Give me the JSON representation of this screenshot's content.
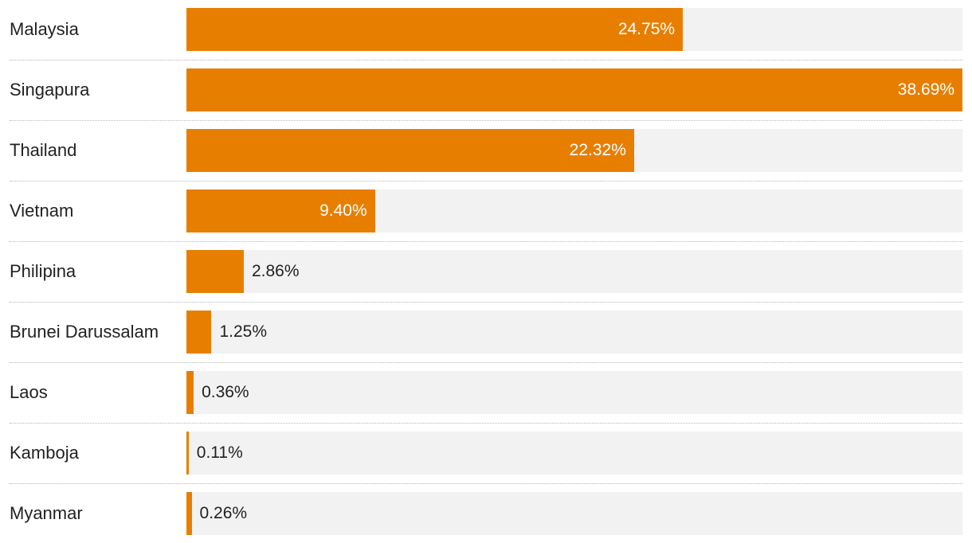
{
  "colors": {
    "bar": "#e87e00",
    "track": "#f2f2f2",
    "label_text": "#222222",
    "inside_text": "#ffffff"
  },
  "chart_data": {
    "type": "bar",
    "orientation": "horizontal",
    "title": "",
    "xlabel": "",
    "ylabel": "",
    "xlim": [
      0,
      38.69
    ],
    "grid": false,
    "legend": "none",
    "categories": [
      "Malaysia",
      "Singapura",
      "Thailand",
      "Vietnam",
      "Philipina",
      "Brunei Darussalam",
      "Laos",
      "Kamboja",
      "Myanmar"
    ],
    "values": [
      24.75,
      38.69,
      22.32,
      9.4,
      2.86,
      1.25,
      0.36,
      0.11,
      0.26
    ],
    "value_labels": [
      "24.75%",
      "38.69%",
      "22.32%",
      "9.40%",
      "2.86%",
      "1.25%",
      "0.36%",
      "0.11%",
      "0.26%"
    ]
  }
}
